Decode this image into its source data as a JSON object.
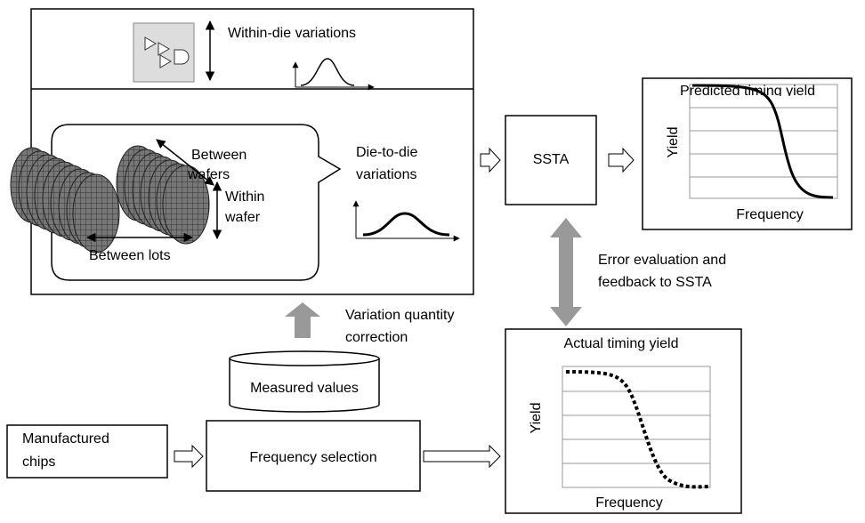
{
  "within_die": {
    "label": "Within-die variations"
  },
  "die_to_die": {
    "label_lines": [
      "Die-to-die",
      "variations"
    ],
    "callout": {
      "between_wafers": [
        "Between",
        "wafers"
      ],
      "within_wafer": [
        "Within",
        "wafer"
      ],
      "between_lots": "Between lots"
    }
  },
  "ssta": {
    "label": "SSTA"
  },
  "predicted": {
    "title": "Predicted timing yield",
    "y_label": "Yield",
    "x_label": "Frequency"
  },
  "feedback": {
    "label_lines": [
      "Error evaluation and",
      "feedback to SSTA"
    ]
  },
  "correction": {
    "label_lines": [
      "Variation quantity",
      "correction"
    ]
  },
  "measured": {
    "label": "Measured values"
  },
  "actual": {
    "title": "Actual timing yield",
    "y_label": "Yield",
    "x_label": "Frequency"
  },
  "chips": {
    "label_lines": [
      "Manufactured",
      "chips"
    ]
  },
  "selection": {
    "label": "Frequency selection"
  }
}
